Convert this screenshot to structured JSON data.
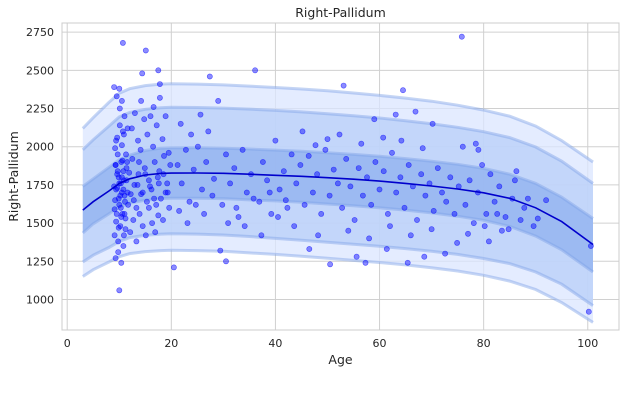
{
  "chart_data": {
    "type": "scatter",
    "title": "Right-Pallidum",
    "xlabel": "Age",
    "ylabel": "Right-Pallidum",
    "xlim": [
      -1,
      106
    ],
    "ylim": [
      800,
      2810
    ],
    "x_ticks": [
      0,
      20,
      40,
      60,
      80,
      100
    ],
    "y_ticks": [
      1000,
      1250,
      1500,
      1750,
      2000,
      2250,
      2500,
      2750
    ],
    "grid": true,
    "legend": "none",
    "colors": {
      "points": "#0000ff",
      "median_line": "#0000cc",
      "band_outer": "#dbe6ff",
      "band_middle": "#b8cff8",
      "band_inner": "#8fb0ef",
      "band_edge": "#7ea2e6",
      "grid": "#d0d0d0",
      "frame": "#cccccc"
    },
    "centile_curves": {
      "x": [
        3,
        5,
        8,
        10,
        12,
        15,
        18,
        20,
        25,
        30,
        35,
        40,
        45,
        50,
        55,
        60,
        65,
        70,
        75,
        80,
        85,
        90,
        95,
        101
      ],
      "p50": [
        1585,
        1640,
        1710,
        1760,
        1790,
        1815,
        1825,
        1827,
        1828,
        1826,
        1820,
        1813,
        1806,
        1797,
        1787,
        1775,
        1760,
        1743,
        1723,
        1698,
        1662,
        1600,
        1510,
        1360
      ],
      "p25": [
        1435,
        1495,
        1560,
        1605,
        1630,
        1650,
        1660,
        1662,
        1663,
        1660,
        1652,
        1645,
        1636,
        1625,
        1613,
        1600,
        1585,
        1567,
        1545,
        1518,
        1478,
        1415,
        1325,
        1180
      ],
      "p75": [
        1740,
        1790,
        1865,
        1915,
        1945,
        1975,
        1990,
        1992,
        1993,
        1990,
        1985,
        1978,
        1970,
        1960,
        1950,
        1938,
        1922,
        1905,
        1885,
        1858,
        1820,
        1760,
        1670,
        1530
      ],
      "p5": [
        1245,
        1290,
        1340,
        1380,
        1405,
        1420,
        1428,
        1430,
        1428,
        1422,
        1412,
        1400,
        1388,
        1375,
        1362,
        1348,
        1333,
        1315,
        1295,
        1268,
        1235,
        1180,
        1100,
        960
      ],
      "p95": [
        1980,
        2045,
        2135,
        2195,
        2225,
        2245,
        2255,
        2258,
        2257,
        2253,
        2246,
        2238,
        2228,
        2216,
        2203,
        2188,
        2170,
        2150,
        2127,
        2098,
        2060,
        1998,
        1905,
        1760
      ],
      "p1": [
        1150,
        1195,
        1245,
        1280,
        1300,
        1313,
        1320,
        1322,
        1320,
        1315,
        1305,
        1295,
        1283,
        1270,
        1256,
        1242,
        1226,
        1208,
        1186,
        1158,
        1120,
        1065,
        980,
        850
      ],
      "p99": [
        2120,
        2190,
        2290,
        2350,
        2380,
        2400,
        2410,
        2412,
        2410,
        2405,
        2397,
        2388,
        2378,
        2366,
        2352,
        2336,
        2318,
        2298,
        2272,
        2240,
        2200,
        2135,
        2040,
        1900
      ]
    },
    "points": [
      [
        9.1,
        1420
      ],
      [
        9.2,
        1650
      ],
      [
        9.3,
        1880
      ],
      [
        9.4,
        2040
      ],
      [
        9.5,
        1560
      ],
      [
        9.6,
        1730
      ],
      [
        9.7,
        1950
      ],
      [
        9.8,
        1310
      ],
      [
        9.9,
        1800
      ],
      [
        10.0,
        1620
      ],
      [
        10.1,
        2250
      ],
      [
        10.2,
        1480
      ],
      [
        10.3,
        1760
      ],
      [
        10.4,
        1900
      ],
      [
        10.5,
        1700
      ],
      [
        10.6,
        1560
      ],
      [
        10.7,
        2100
      ],
      [
        10.8,
        1840
      ],
      [
        10.9,
        1420
      ],
      [
        11.0,
        1680
      ],
      [
        9.0,
        2390
      ],
      [
        9.5,
        2330
      ],
      [
        10.0,
        2380
      ],
      [
        10.5,
        2300
      ],
      [
        11.0,
        2200
      ],
      [
        9.3,
        1270
      ],
      [
        9.8,
        1380
      ],
      [
        10.4,
        1240
      ],
      [
        10.8,
        1350
      ],
      [
        11.2,
        1460
      ],
      [
        9.1,
        1590
      ],
      [
        9.4,
        1720
      ],
      [
        9.7,
        1840
      ],
      [
        10.0,
        1760
      ],
      [
        10.3,
        1600
      ],
      [
        10.6,
        1910
      ],
      [
        10.9,
        1780
      ],
      [
        11.2,
        1530
      ],
      [
        11.4,
        1860
      ],
      [
        11.6,
        1700
      ],
      [
        9.2,
        1990
      ],
      [
        9.6,
        2060
      ],
      [
        10.1,
        2140
      ],
      [
        10.5,
        2010
      ],
      [
        10.9,
        2080
      ],
      [
        11.3,
        1950
      ],
      [
        11.6,
        2120
      ],
      [
        9.4,
        1510
      ],
      [
        9.9,
        1470
      ],
      [
        10.4,
        1540
      ],
      [
        9.0,
        1740
      ],
      [
        9.6,
        1820
      ],
      [
        10.2,
        1680
      ],
      [
        10.8,
        1720
      ],
      [
        11.4,
        1780
      ],
      [
        9.3,
        1880
      ],
      [
        9.9,
        1660
      ],
      [
        10.5,
        1800
      ],
      [
        11.1,
        1640
      ],
      [
        11.5,
        1900
      ],
      [
        10.0,
        1060
      ],
      [
        10.7,
        2680
      ],
      [
        11.0,
        1560
      ],
      [
        11.7,
        1620
      ],
      [
        11.9,
        1830
      ],
      [
        12.2,
        1690
      ],
      [
        12.5,
        1920
      ],
      [
        12.9,
        1750
      ],
      [
        13.3,
        1600
      ],
      [
        13.7,
        1820
      ],
      [
        14.1,
        1980
      ],
      [
        14.5,
        1700
      ],
      [
        14.9,
        1860
      ],
      [
        15.3,
        1640
      ],
      [
        15.7,
        1780
      ],
      [
        12.4,
        2120
      ],
      [
        13.0,
        2220
      ],
      [
        13.6,
        2040
      ],
      [
        14.2,
        2300
      ],
      [
        14.8,
        2180
      ],
      [
        15.4,
        2080
      ],
      [
        16.0,
        2200
      ],
      [
        16.6,
        2260
      ],
      [
        17.2,
        2140
      ],
      [
        17.8,
        2320
      ],
      [
        12.1,
        1440
      ],
      [
        12.7,
        1520
      ],
      [
        13.3,
        1380
      ],
      [
        13.9,
        1560
      ],
      [
        14.5,
        1480
      ],
      [
        15.1,
        1420
      ],
      [
        15.7,
        1600
      ],
      [
        16.3,
        1500
      ],
      [
        16.9,
        1440
      ],
      [
        17.5,
        1550
      ],
      [
        16.2,
        1720
      ],
      [
        16.8,
        1900
      ],
      [
        17.4,
        1800
      ],
      [
        18.0,
        1660
      ],
      [
        18.6,
        1940
      ],
      [
        19.2,
        1760
      ],
      [
        19.8,
        1880
      ],
      [
        16.5,
        2000
      ],
      [
        17.1,
        1620
      ],
      [
        17.7,
        1840
      ],
      [
        18.3,
        2050
      ],
      [
        18.9,
        1700
      ],
      [
        19.5,
        1960
      ],
      [
        15.1,
        2630
      ],
      [
        14.4,
        2480
      ],
      [
        17.5,
        2500
      ],
      [
        17.8,
        2410
      ],
      [
        18.9,
        2200
      ],
      [
        19.6,
        1600
      ],
      [
        18.4,
        1520
      ],
      [
        13.5,
        1750
      ],
      [
        14.2,
        1690
      ],
      [
        15.0,
        1820
      ],
      [
        15.9,
        1740
      ],
      [
        16.7,
        1660
      ],
      [
        17.6,
        1760
      ],
      [
        18.5,
        1820
      ],
      [
        19.3,
        1700
      ],
      [
        12.8,
        1650
      ],
      [
        13.8,
        1900
      ],
      [
        20.5,
        1210
      ],
      [
        21.2,
        1880
      ],
      [
        22.0,
        1760
      ],
      [
        22.8,
        1980
      ],
      [
        23.5,
        1640
      ],
      [
        24.3,
        1850
      ],
      [
        25.1,
        2000
      ],
      [
        25.9,
        1720
      ],
      [
        26.7,
        1900
      ],
      [
        27.4,
        2460
      ],
      [
        28.2,
        1790
      ],
      [
        29.0,
        2300
      ],
      [
        29.8,
        1620
      ],
      [
        30.5,
        1950
      ],
      [
        31.3,
        1760
      ],
      [
        32.1,
        1860
      ],
      [
        32.9,
        1540
      ],
      [
        33.7,
        1980
      ],
      [
        34.5,
        1700
      ],
      [
        35.3,
        1820
      ],
      [
        36.1,
        2500
      ],
      [
        36.9,
        1640
      ],
      [
        37.6,
        1900
      ],
      [
        38.4,
        1780
      ],
      [
        39.2,
        1560
      ],
      [
        40.0,
        2040
      ],
      [
        40.8,
        1720
      ],
      [
        41.6,
        1840
      ],
      [
        42.3,
        1600
      ],
      [
        43.1,
        1950
      ],
      [
        21.5,
        1580
      ],
      [
        23.1,
        1500
      ],
      [
        24.7,
        1620
      ],
      [
        26.3,
        1560
      ],
      [
        27.9,
        1680
      ],
      [
        29.4,
        1320
      ],
      [
        30.9,
        1500
      ],
      [
        30.5,
        1250
      ],
      [
        32.5,
        1600
      ],
      [
        34.1,
        1480
      ],
      [
        35.8,
        1660
      ],
      [
        37.3,
        1420
      ],
      [
        38.9,
        1700
      ],
      [
        40.5,
        1540
      ],
      [
        42.0,
        1650
      ],
      [
        43.6,
        1480
      ],
      [
        21.8,
        2150
      ],
      [
        23.8,
        2080
      ],
      [
        25.6,
        2210
      ],
      [
        27.1,
        2100
      ],
      [
        44.0,
        1760
      ],
      [
        44.8,
        1880
      ],
      [
        45.6,
        1620
      ],
      [
        46.4,
        1940
      ],
      [
        47.2,
        1700
      ],
      [
        48.0,
        1820
      ],
      [
        48.8,
        1560
      ],
      [
        49.6,
        1980
      ],
      [
        50.4,
        1680
      ],
      [
        51.2,
        1850
      ],
      [
        52.0,
        1760
      ],
      [
        52.8,
        1600
      ],
      [
        53.6,
        1920
      ],
      [
        54.4,
        1740
      ],
      [
        55.2,
        1520
      ],
      [
        56.0,
        1860
      ],
      [
        56.8,
        1680
      ],
      [
        57.6,
        1800
      ],
      [
        58.4,
        1620
      ],
      [
        59.2,
        1900
      ],
      [
        60.0,
        1720
      ],
      [
        60.8,
        1840
      ],
      [
        61.6,
        1560
      ],
      [
        62.4,
        1960
      ],
      [
        63.2,
        1700
      ],
      [
        64.0,
        1800
      ],
      [
        64.8,
        1600
      ],
      [
        65.6,
        1880
      ],
      [
        66.4,
        1740
      ],
      [
        67.2,
        1520
      ],
      [
        68.0,
        1820
      ],
      [
        68.8,
        1680
      ],
      [
        69.6,
        1760
      ],
      [
        70.4,
        1580
      ],
      [
        71.2,
        1860
      ],
      [
        72.0,
        1700
      ],
      [
        72.8,
        1640
      ],
      [
        73.6,
        1800
      ],
      [
        74.4,
        1560
      ],
      [
        75.2,
        1740
      ],
      [
        53.1,
        2400
      ],
      [
        50.5,
        1230
      ],
      [
        55.6,
        1280
      ],
      [
        57.3,
        1240
      ],
      [
        59.0,
        2180
      ],
      [
        61.4,
        1330
      ],
      [
        63.1,
        2210
      ],
      [
        64.5,
        2370
      ],
      [
        65.4,
        1240
      ],
      [
        66.9,
        2230
      ],
      [
        68.6,
        1280
      ],
      [
        70.2,
        2150
      ],
      [
        72.6,
        1300
      ],
      [
        74.9,
        1370
      ],
      [
        75.8,
        2720
      ],
      [
        46.5,
        1330
      ],
      [
        48.2,
        1420
      ],
      [
        50.0,
        2050
      ],
      [
        54.0,
        1450
      ],
      [
        58.0,
        1400
      ],
      [
        62.0,
        1480
      ],
      [
        66.0,
        1420
      ],
      [
        70.0,
        1460
      ],
      [
        45.2,
        2100
      ],
      [
        47.7,
        2010
      ],
      [
        52.3,
        2080
      ],
      [
        56.5,
        2020
      ],
      [
        60.7,
        2060
      ],
      [
        64.2,
        2040
      ],
      [
        68.3,
        1990
      ],
      [
        76.5,
        1620
      ],
      [
        77.3,
        1780
      ],
      [
        78.1,
        1500
      ],
      [
        78.9,
        1700
      ],
      [
        79.7,
        1880
      ],
      [
        80.5,
        1560
      ],
      [
        81.3,
        1820
      ],
      [
        82.1,
        1640
      ],
      [
        83.0,
        1740
      ],
      [
        84.2,
        1540
      ],
      [
        85.5,
        1660
      ],
      [
        86.3,
        1840
      ],
      [
        87.1,
        1520
      ],
      [
        88.5,
        1660
      ],
      [
        89.6,
        1480
      ],
      [
        92.0,
        1650
      ],
      [
        100.2,
        920
      ],
      [
        100.6,
        1350
      ],
      [
        77.0,
        1430
      ],
      [
        79.0,
        1980
      ],
      [
        81.0,
        1380
      ],
      [
        83.5,
        1450
      ],
      [
        86.0,
        1780
      ],
      [
        76.0,
        2000
      ],
      [
        78.5,
        2020
      ],
      [
        80.2,
        1480
      ],
      [
        82.6,
        1560
      ],
      [
        84.8,
        1460
      ],
      [
        87.8,
        1600
      ],
      [
        90.4,
        1530
      ]
    ]
  }
}
